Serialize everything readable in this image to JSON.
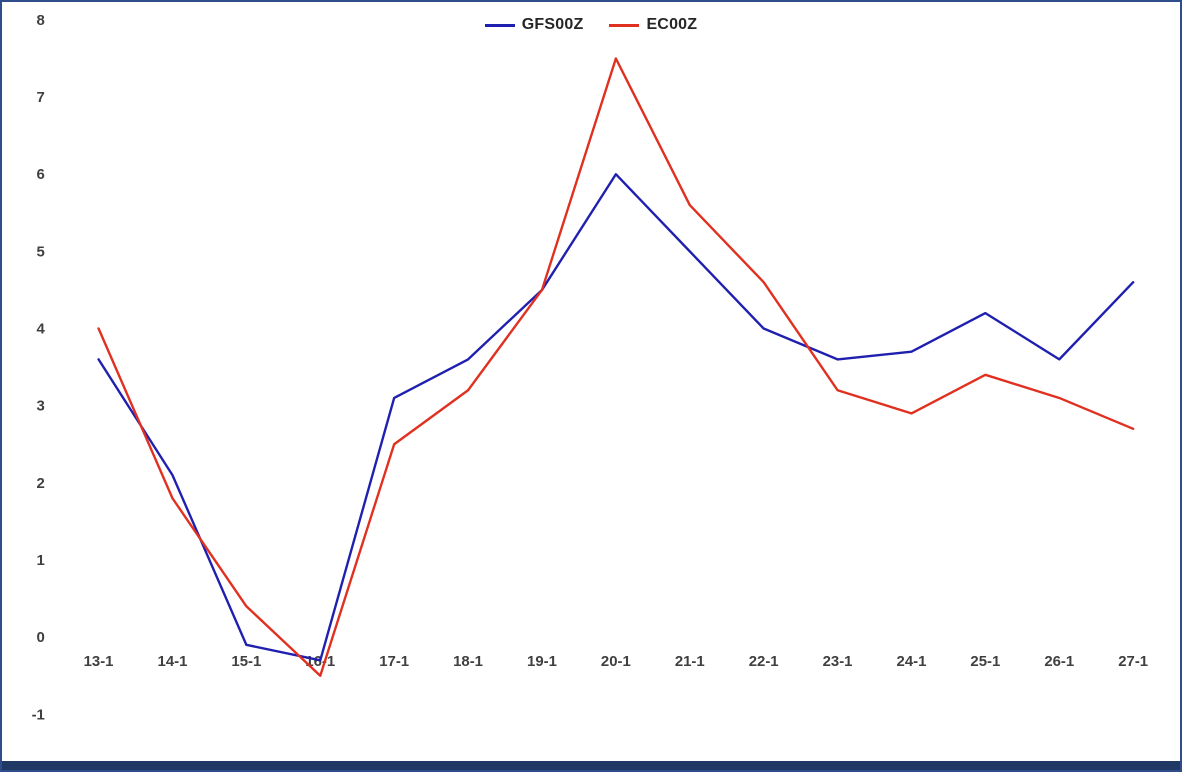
{
  "chart_data": {
    "type": "line",
    "title": "",
    "xlabel": "",
    "ylabel": "",
    "ylim": [
      -1,
      8
    ],
    "grid": false,
    "legend_position": "top-center",
    "y_ticks": [
      8,
      7,
      6,
      5,
      4,
      3,
      2,
      1,
      0,
      -1
    ],
    "categories": [
      "13-1",
      "14-1",
      "15-1",
      "16-1",
      "17-1",
      "18-1",
      "19-1",
      "20-1",
      "21-1",
      "22-1",
      "23-1",
      "24-1",
      "25-1",
      "26-1",
      "27-1"
    ],
    "series": [
      {
        "name": "GFS00Z",
        "color": "#2020b0",
        "values": [
          3.6,
          2.1,
          -0.1,
          -0.3,
          3.1,
          3.6,
          4.5,
          6.0,
          5.0,
          4.0,
          3.6,
          3.7,
          4.2,
          3.6,
          4.6
        ]
      },
      {
        "name": "EC00Z",
        "color": "#e03020",
        "values": [
          4.0,
          1.8,
          0.4,
          -0.5,
          2.5,
          3.2,
          4.5,
          7.5,
          5.6,
          4.6,
          3.2,
          2.9,
          3.4,
          3.1,
          2.7
        ]
      }
    ]
  }
}
